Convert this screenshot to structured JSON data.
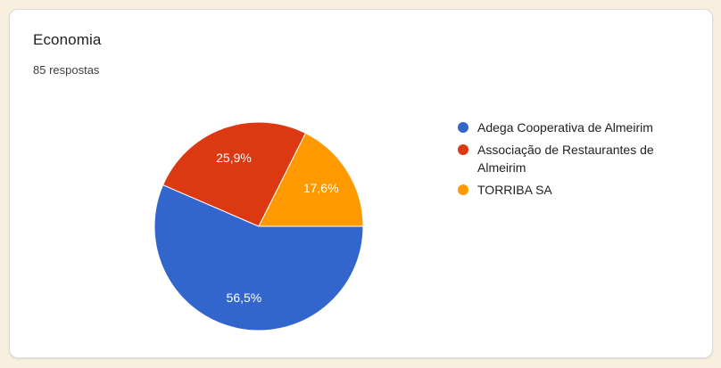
{
  "card": {
    "title": "Economia",
    "subtitle": "85 respostas"
  },
  "colors": {
    "page_background": "#F8EFDF",
    "card_background": "#FFFFFF",
    "card_border": "#DADCE0",
    "title_text": "#202124",
    "slice_label_text": "#FFFFFF"
  },
  "chart_data": {
    "type": "pie",
    "title": "Economia",
    "subtitle": "85 respostas",
    "legend_position": "right",
    "start_angle_deg": 90,
    "direction": "clockwise",
    "slices": [
      {
        "label": "Adega Cooperativa de Almeirim",
        "value_pct": 56.5,
        "pct_label": "56,5%",
        "color": "#3366CC"
      },
      {
        "label": "Associação de Restaurantes de Almeirim",
        "value_pct": 25.9,
        "pct_label": "25,9%",
        "color": "#DC3912"
      },
      {
        "label": "TORRIBA SA",
        "value_pct": 17.6,
        "pct_label": "17,6%",
        "color": "#FF9900"
      }
    ]
  }
}
